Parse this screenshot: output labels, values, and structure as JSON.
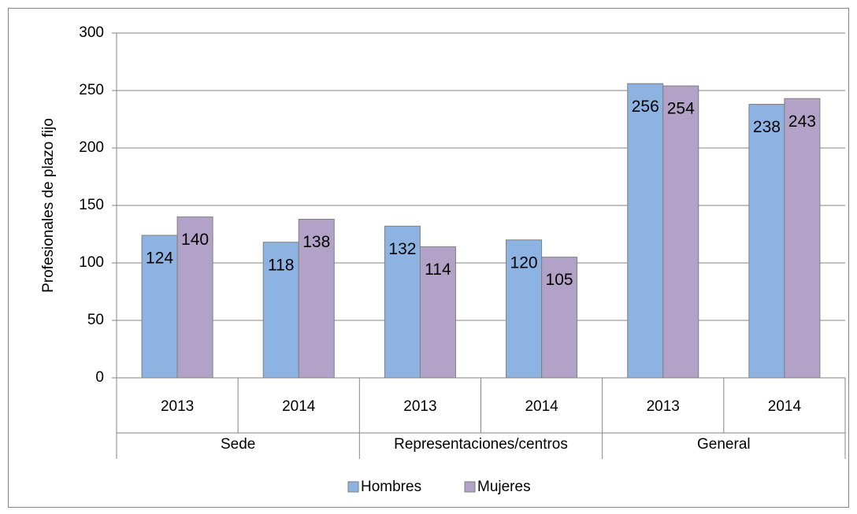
{
  "chart_data": {
    "type": "bar",
    "ylabel": "Profesionales de plazo fijo",
    "categories": [
      "2013",
      "2014",
      "2013",
      "2014",
      "2013",
      "2014"
    ],
    "category_groups": [
      "Sede",
      "Representaciones/centros",
      "General"
    ],
    "series": [
      {
        "name": "Hombres",
        "color": "#8db3e2",
        "values": [
          124,
          118,
          132,
          120,
          256,
          238
        ]
      },
      {
        "name": "Mujeres",
        "color": "#b3a2c7",
        "values": [
          140,
          138,
          114,
          105,
          254,
          243
        ]
      }
    ],
    "ylim": [
      0,
      300
    ],
    "yticks": [
      0,
      50,
      100,
      150,
      200,
      250,
      300
    ],
    "grid": true,
    "legend": "bottom"
  }
}
